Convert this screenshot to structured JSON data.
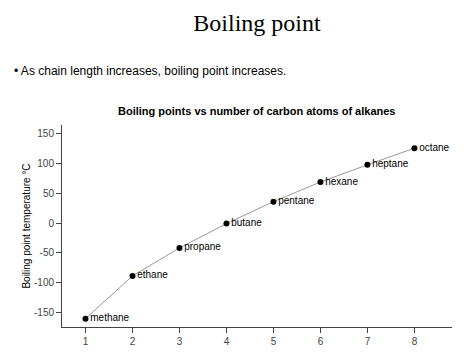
{
  "chart_data": {
    "type": "line",
    "title": "Boiling point",
    "subtitle": "Boiling points vs number of carbon atoms of alkanes",
    "annotations": [
      {
        "text": "• As chain length increases, boiling point increases."
      }
    ],
    "ylabel": "Boiling point temperature °C",
    "x": [
      1,
      2,
      3,
      4,
      5,
      6,
      7,
      8
    ],
    "values": [
      -161,
      -89,
      -42,
      -1,
      36,
      69,
      98,
      126
    ],
    "labels": [
      "methane",
      "ethane",
      "propane",
      "butane",
      "pentane",
      "hexane",
      "heptane",
      "octane"
    ],
    "color": "#000000",
    "marker": "circle",
    "xlim": [
      0.5,
      8.8
    ],
    "ylim": [
      -175,
      165
    ],
    "xticks": [
      1,
      2,
      3,
      4,
      5,
      6,
      7,
      8
    ],
    "yticks": [
      -150,
      -100,
      -50,
      0,
      50,
      100,
      150
    ],
    "grid": false
  }
}
